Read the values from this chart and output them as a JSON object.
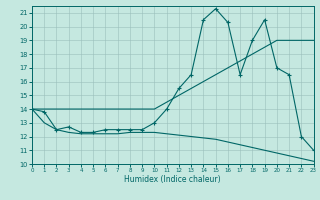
{
  "xlabel": "Humidex (Indice chaleur)",
  "xlim": [
    0,
    23
  ],
  "ylim": [
    10,
    21.5
  ],
  "yticks": [
    10,
    11,
    12,
    13,
    14,
    15,
    16,
    17,
    18,
    19,
    20,
    21
  ],
  "xticks": [
    0,
    1,
    2,
    3,
    4,
    5,
    6,
    7,
    8,
    9,
    10,
    11,
    12,
    13,
    14,
    15,
    16,
    17,
    18,
    19,
    20,
    21,
    22,
    23
  ],
  "bg_color": "#c5e8e0",
  "line_color": "#006666",
  "hours": [
    0,
    1,
    2,
    3,
    4,
    5,
    6,
    7,
    8,
    9,
    10,
    11,
    12,
    13,
    14,
    15,
    16,
    17,
    18,
    19,
    20,
    21,
    22,
    23
  ],
  "humidex": [
    14.0,
    13.8,
    12.5,
    12.7,
    12.3,
    12.3,
    12.5,
    12.5,
    12.5,
    12.5,
    13.0,
    14.0,
    15.5,
    16.5,
    20.5,
    21.3,
    20.3,
    16.5,
    19.0,
    20.5,
    17.0,
    16.5,
    12.0,
    11.0
  ],
  "tmax": [
    14.0,
    14.0,
    14.0,
    14.0,
    14.0,
    14.0,
    14.0,
    14.0,
    14.0,
    14.0,
    14.0,
    14.5,
    15.0,
    15.5,
    16.0,
    16.5,
    17.0,
    17.5,
    18.0,
    18.5,
    19.0,
    19.0,
    19.0,
    19.0
  ],
  "tmin": [
    14.0,
    13.0,
    12.5,
    12.3,
    12.2,
    12.2,
    12.2,
    12.2,
    12.3,
    12.3,
    12.3,
    12.2,
    12.1,
    12.0,
    11.9,
    11.8,
    11.6,
    11.4,
    11.2,
    11.0,
    10.8,
    10.6,
    10.4,
    10.2
  ]
}
